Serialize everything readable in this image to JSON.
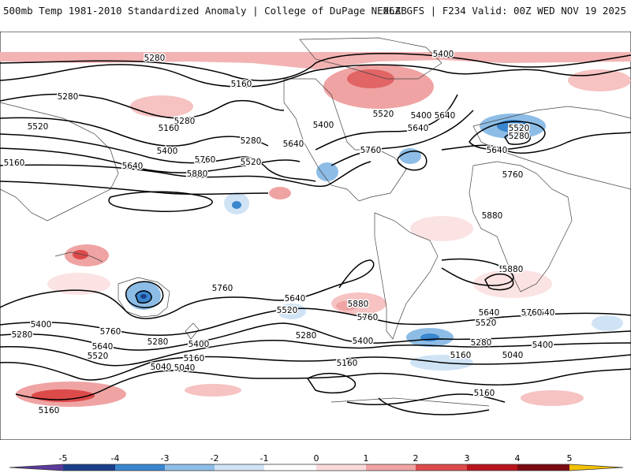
{
  "header": {
    "title_left": "500mb Temp 1981-2010 Standardized Anomaly | College of DuPage NEXLAB",
    "title_right": "06Z GFS | F234 Valid: 00Z WED NOV 19 2025"
  },
  "colors": {
    "anom_neg5": "#5b3a9c",
    "anom_neg4": "#1c3f8a",
    "anom_neg3": "#3a86cf",
    "anom_neg2": "#8dbde6",
    "anom_neg1": "#cfe3f5",
    "anom_zero": "#ffffff",
    "anom_pos1": "#f9dada",
    "anom_pos2": "#efa3a3",
    "anom_pos3": "#dc4a4a",
    "anom_pos4": "#b8141d",
    "anom_pos5": "#7a0a12",
    "anom_pos6": "#f2c100",
    "contour": "#000000",
    "coastline": "#444444"
  },
  "colorbar": {
    "ticks": [
      "-5",
      "-4",
      "-3",
      "-2",
      "-1",
      "0",
      "1",
      "2",
      "3",
      "4",
      "5"
    ]
  },
  "contours": {
    "labels": [
      "5400",
      "5280",
      "5160",
      "5280",
      "5520",
      "5280",
      "5160",
      "5400",
      "5640",
      "5280",
      "5760",
      "5880",
      "5520",
      "5640",
      "5400",
      "5520",
      "5640",
      "5760",
      "5160",
      "5400",
      "5640",
      "5520",
      "5280",
      "5640",
      "5760",
      "5880",
      "5880",
      "5640",
      "5520",
      "5880",
      "5760",
      "5640",
      "5520",
      "5400",
      "5280",
      "5160",
      "5040",
      "5760",
      "5400",
      "5760",
      "5280",
      "5640",
      "5520",
      "5280",
      "5400",
      "5160",
      "5040",
      "5160",
      "5640",
      "5520",
      "5280",
      "5400",
      "5160",
      "5040",
      "5160",
      "5880",
      "5760"
    ]
  }
}
